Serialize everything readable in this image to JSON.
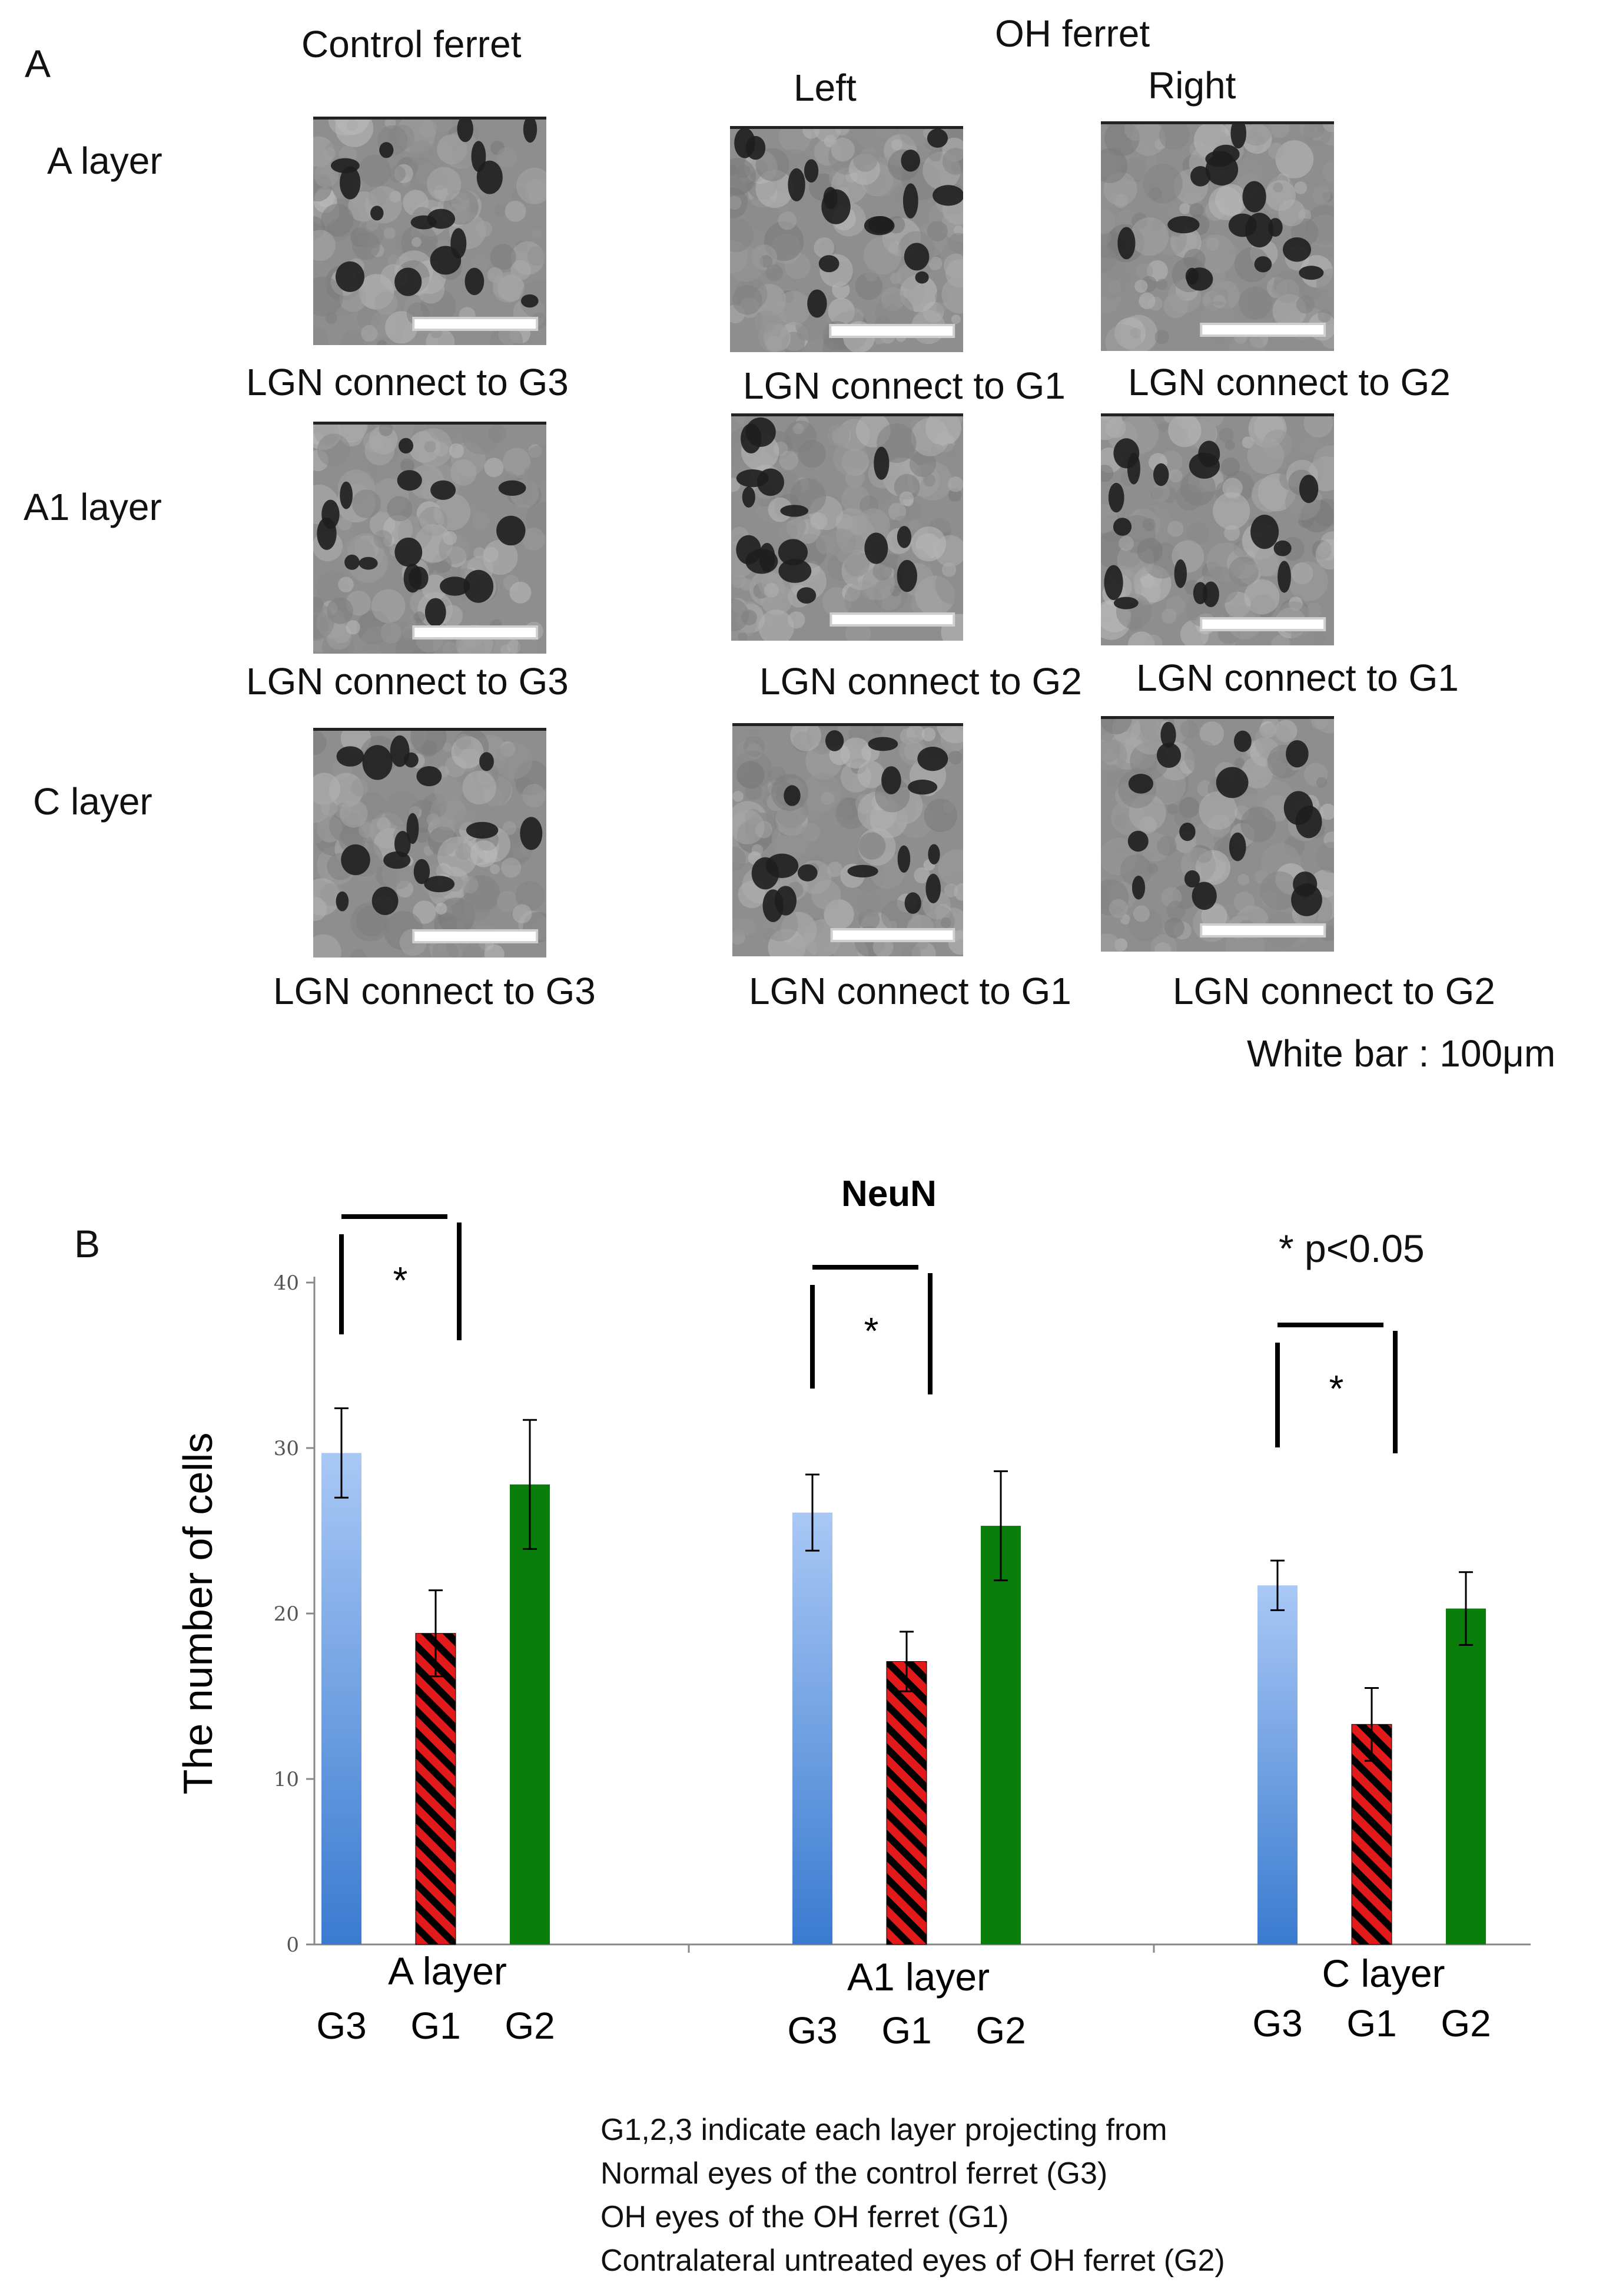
{
  "panel_a": {
    "letter": "A",
    "control_heading": "Control ferret",
    "oh_heading": "OH ferret",
    "left_heading": "Left",
    "right_heading": "Right",
    "rows": [
      {
        "label": "A layer",
        "captions": [
          "LGN connect to G3",
          "LGN connect to G1",
          "LGN connect to G2"
        ]
      },
      {
        "label": "A1 layer",
        "captions": [
          "LGN connect to G3",
          "LGN connect to G2",
          "LGN connect to G1"
        ]
      },
      {
        "label": "C layer",
        "captions": [
          "LGN connect to G3",
          "LGN connect to G1",
          "LGN connect to G2"
        ]
      }
    ],
    "scale_note": "White bar : 100μm"
  },
  "panel_b": {
    "letter": "B",
    "p_note": "* p<0.05",
    "legend": [
      "G1,2,3 indicate each layer projecting from",
      "Normal eyes of the control ferret (G3)",
      "OH eyes of the OH ferret (G1)",
      "Contralateral untreated eyes of OH ferret (G2)"
    ]
  },
  "chart_data": {
    "type": "bar",
    "title": "NeuN",
    "ylabel": "The number of cells",
    "ylim": [
      0,
      40
    ],
    "yticks": [
      "0",
      "10",
      "20",
      "30",
      "40"
    ],
    "groups": [
      {
        "label": "A layer",
        "sublabels": [
          "G3",
          "G1",
          "G2"
        ],
        "values": [
          29.7,
          18.8,
          27.8
        ],
        "errors": [
          2.7,
          2.6,
          3.9
        ],
        "significance": "*"
      },
      {
        "label": "A1 layer",
        "sublabels": [
          "G3",
          "G1",
          "G2"
        ],
        "values": [
          26.1,
          17.1,
          25.3
        ],
        "errors": [
          2.3,
          1.8,
          3.3
        ],
        "significance": "*"
      },
      {
        "label": "C layer",
        "sublabels": [
          "G3",
          "G1",
          "G2"
        ],
        "values": [
          21.7,
          13.3,
          20.3
        ],
        "errors": [
          1.5,
          2.2,
          2.2
        ],
        "significance": "*"
      }
    ],
    "colors": {
      "G3_top": "#a9c8f5",
      "G3_bottom": "#3a7bd0",
      "G1": "#e31a1c",
      "G1_hatch": "#000000",
      "G2": "#0a7e0a"
    }
  }
}
